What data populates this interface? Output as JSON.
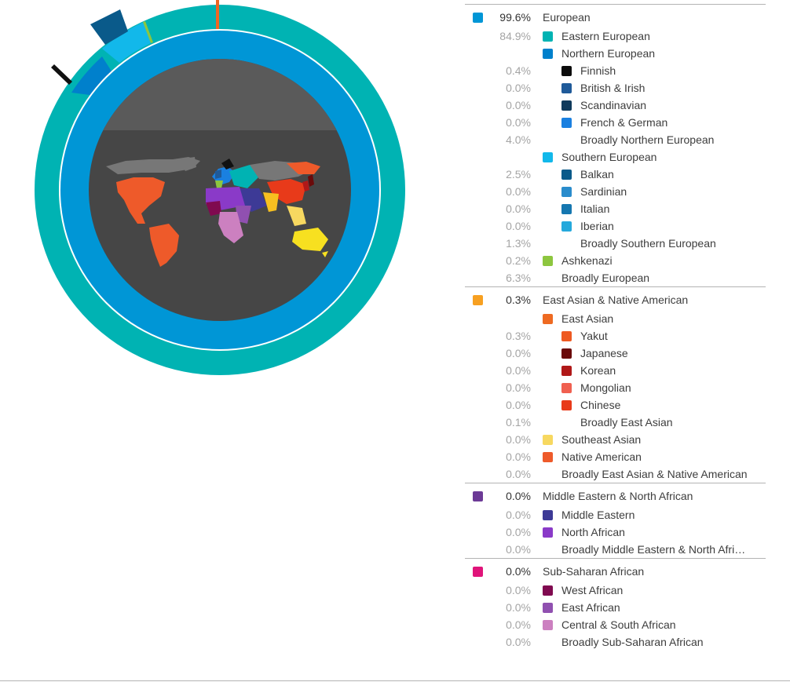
{
  "chart": {
    "outer_ring_color": "#00b3b3",
    "inner_ring_color": "#0096d6",
    "center_color": "#464646",
    "center_top_color": "#5a5a5a",
    "sunburst_segments": [
      {
        "name": "Eastern European",
        "color": "#00b3b3"
      },
      {
        "name": "Northern European",
        "color": "#0080cc"
      },
      {
        "name": "Finnish",
        "color": "#111111"
      },
      {
        "name": "Southern European",
        "color": "#12b8ea"
      },
      {
        "name": "Balkan",
        "color": "#0a5a8a"
      },
      {
        "name": "Ashkenazi",
        "color": "#8dc63f"
      },
      {
        "name": "Yakut",
        "color": "#ee6622"
      }
    ],
    "map_icon": "world-map-icon"
  },
  "groups": [
    {
      "rows": [
        {
          "level": 0,
          "pct": "99.6%",
          "label": "European",
          "color": "#0096d6"
        },
        {
          "level": 1,
          "pct": "84.9%",
          "label": "Eastern European",
          "color": "#00b3b3"
        },
        {
          "level": 1,
          "pct": "",
          "label": "Northern European",
          "color": "#0080cc"
        },
        {
          "level": 2,
          "pct": "0.4%",
          "label": "Finnish",
          "color": "#0c0c0c"
        },
        {
          "level": 2,
          "pct": "0.0%",
          "label": "British & Irish",
          "color": "#1f5a99"
        },
        {
          "level": 2,
          "pct": "0.0%",
          "label": "Scandinavian",
          "color": "#103a5c"
        },
        {
          "level": 2,
          "pct": "0.0%",
          "label": "French & German",
          "color": "#1a80e0"
        },
        {
          "level": 2,
          "pct": "4.0%",
          "label": "Broadly Northern European",
          "color": ""
        },
        {
          "level": 1,
          "pct": "",
          "label": "Southern European",
          "color": "#12b8ea"
        },
        {
          "level": 2,
          "pct": "2.5%",
          "label": "Balkan",
          "color": "#0a5a8a"
        },
        {
          "level": 2,
          "pct": "0.0%",
          "label": "Sardinian",
          "color": "#2a8ccc"
        },
        {
          "level": 2,
          "pct": "0.0%",
          "label": "Italian",
          "color": "#1577b0"
        },
        {
          "level": 2,
          "pct": "0.0%",
          "label": "Iberian",
          "color": "#25a9dc"
        },
        {
          "level": 2,
          "pct": "1.3%",
          "label": "Broadly Southern European",
          "color": ""
        },
        {
          "level": 1,
          "pct": "0.2%",
          "label": "Ashkenazi",
          "color": "#8dc63f"
        },
        {
          "level": 1,
          "pct": "6.3%",
          "label": "Broadly European",
          "color": ""
        }
      ]
    },
    {
      "rows": [
        {
          "level": 0,
          "pct": "0.3%",
          "label": "East Asian & Native American",
          "color": "#f7a021"
        },
        {
          "level": 1,
          "pct": "",
          "label": "East Asian",
          "color": "#ee6a22"
        },
        {
          "level": 2,
          "pct": "0.3%",
          "label": "Yakut",
          "color": "#ee5a22"
        },
        {
          "level": 2,
          "pct": "0.0%",
          "label": "Japanese",
          "color": "#6a0a0a"
        },
        {
          "level": 2,
          "pct": "0.0%",
          "label": "Korean",
          "color": "#b01818"
        },
        {
          "level": 2,
          "pct": "0.0%",
          "label": "Mongolian",
          "color": "#f06050"
        },
        {
          "level": 2,
          "pct": "0.0%",
          "label": "Chinese",
          "color": "#e83a1a"
        },
        {
          "level": 2,
          "pct": "0.1%",
          "label": "Broadly East Asian",
          "color": ""
        },
        {
          "level": 1,
          "pct": "0.0%",
          "label": "Southeast Asian",
          "color": "#f7d860"
        },
        {
          "level": 1,
          "pct": "0.0%",
          "label": "Native American",
          "color": "#ee5a2a"
        },
        {
          "level": 1,
          "pct": "0.0%",
          "label": "Broadly East Asian & Native American",
          "color": ""
        }
      ]
    },
    {
      "rows": [
        {
          "level": 0,
          "pct": "0.0%",
          "label": "Middle Eastern & North African",
          "color": "#6c3a96"
        },
        {
          "level": 1,
          "pct": "0.0%",
          "label": "Middle Eastern",
          "color": "#3d3a96"
        },
        {
          "level": 1,
          "pct": "0.0%",
          "label": "North African",
          "color": "#8a3ac8"
        },
        {
          "level": 1,
          "pct": "0.0%",
          "label": "Broadly Middle Eastern & North Afri…",
          "color": ""
        }
      ]
    },
    {
      "rows": [
        {
          "level": 0,
          "pct": "0.0%",
          "label": "Sub-Saharan African",
          "color": "#e0147a"
        },
        {
          "level": 1,
          "pct": "0.0%",
          "label": "West African",
          "color": "#800a50"
        },
        {
          "level": 1,
          "pct": "0.0%",
          "label": "East African",
          "color": "#9050b0"
        },
        {
          "level": 1,
          "pct": "0.0%",
          "label": "Central & South African",
          "color": "#cc80c0"
        },
        {
          "level": 1,
          "pct": "0.0%",
          "label": "Broadly Sub-Saharan African",
          "color": ""
        }
      ]
    }
  ]
}
